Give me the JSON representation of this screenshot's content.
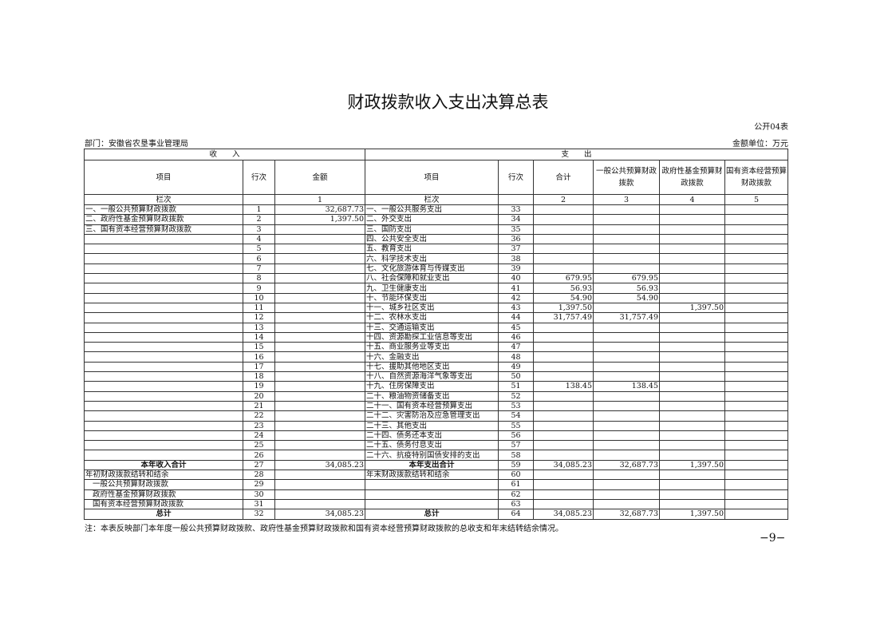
{
  "title": "财政拨款收入支出决算总表",
  "form_code": "公开04表",
  "department": "部门：安徽省农垦事业管理局",
  "unit": "金额单位：万元",
  "header": {
    "income": "收　　入",
    "expense": "支　　出",
    "item": "项目",
    "row_no": "行次",
    "amount": "金额",
    "item2": "项目",
    "row_no2": "行次",
    "total": "合计",
    "general": "一般公共预算财政拨款",
    "gov_fund": "政府性基金预算财政拨款",
    "state_capital": "国有资本经营预算财政拨款",
    "col_label": "栏次",
    "col_label2": "栏次",
    "c1": "1",
    "c2": "2",
    "c3": "3",
    "c4": "4",
    "c5": "5"
  },
  "rows": [
    [
      "一、一般公共预算财政拨款",
      "1",
      "32,687.73",
      "一、一般公共服务支出",
      "33",
      "",
      "",
      "",
      ""
    ],
    [
      "二、政府性基金预算财政拨款",
      "2",
      "1,397.50",
      "二、外交支出",
      "34",
      "",
      "",
      "",
      ""
    ],
    [
      "三、国有资本经营预算财政拨款",
      "3",
      "",
      "三、国防支出",
      "35",
      "",
      "",
      "",
      ""
    ],
    [
      "",
      "4",
      "",
      "四、公共安全支出",
      "36",
      "",
      "",
      "",
      ""
    ],
    [
      "",
      "5",
      "",
      "五、教育支出",
      "37",
      "",
      "",
      "",
      ""
    ],
    [
      "",
      "6",
      "",
      "六、科学技术支出",
      "38",
      "",
      "",
      "",
      ""
    ],
    [
      "",
      "7",
      "",
      "七、文化旅游体育与传媒支出",
      "39",
      "",
      "",
      "",
      ""
    ],
    [
      "",
      "8",
      "",
      "八、社会保障和就业支出",
      "40",
      "679.95",
      "679.95",
      "",
      ""
    ],
    [
      "",
      "9",
      "",
      "九、卫生健康支出",
      "41",
      "56.93",
      "56.93",
      "",
      ""
    ],
    [
      "",
      "10",
      "",
      "十、节能环保支出",
      "42",
      "54.90",
      "54.90",
      "",
      ""
    ],
    [
      "",
      "11",
      "",
      "十一、城乡社区支出",
      "43",
      "1,397.50",
      "",
      "1,397.50",
      ""
    ],
    [
      "",
      "12",
      "",
      "十二、农林水支出",
      "44",
      "31,757.49",
      "31,757.49",
      "",
      ""
    ],
    [
      "",
      "13",
      "",
      "十三、交通运输支出",
      "45",
      "",
      "",
      "",
      ""
    ],
    [
      "",
      "14",
      "",
      "十四、资源勘探工业信息等支出",
      "46",
      "",
      "",
      "",
      ""
    ],
    [
      "",
      "15",
      "",
      "十五、商业服务业等支出",
      "47",
      "",
      "",
      "",
      ""
    ],
    [
      "",
      "16",
      "",
      "十六、金融支出",
      "48",
      "",
      "",
      "",
      ""
    ],
    [
      "",
      "17",
      "",
      "十七、援助其他地区支出",
      "49",
      "",
      "",
      "",
      ""
    ],
    [
      "",
      "18",
      "",
      "十八、自然资源海洋气象等支出",
      "50",
      "",
      "",
      "",
      ""
    ],
    [
      "",
      "19",
      "",
      "十九、住房保障支出",
      "51",
      "138.45",
      "138.45",
      "",
      ""
    ],
    [
      "",
      "20",
      "",
      "二十、粮油物资储备支出",
      "52",
      "",
      "",
      "",
      ""
    ],
    [
      "",
      "21",
      "",
      "二十一、国有资本经营预算支出",
      "53",
      "",
      "",
      "",
      ""
    ],
    [
      "",
      "22",
      "",
      "二十二、灾害防治及应急管理支出",
      "54",
      "",
      "",
      "",
      ""
    ],
    [
      "",
      "23",
      "",
      "二十三、其他支出",
      "55",
      "",
      "",
      "",
      ""
    ],
    [
      "",
      "24",
      "",
      "二十四、债务还本支出",
      "56",
      "",
      "",
      "",
      ""
    ],
    [
      "",
      "25",
      "",
      "二十五、债务付息支出",
      "57",
      "",
      "",
      "",
      ""
    ],
    [
      "",
      "26",
      "",
      "二十六、抗疫特别国债安排的支出",
      "58",
      "",
      "",
      "",
      ""
    ],
    [
      "本年收入合计",
      "27",
      "34,085.23",
      "本年支出合计",
      "59",
      "34,085.23",
      "32,687.73",
      "1,397.50",
      ""
    ],
    [
      "年初财政拨款结转和结余",
      "28",
      "",
      "年末财政拨款结转和结余",
      "60",
      "",
      "",
      "",
      ""
    ],
    [
      "一般公共预算财政拨款",
      "29",
      "",
      "",
      "61",
      "",
      "",
      "",
      ""
    ],
    [
      "政府性基金预算财政拨款",
      "30",
      "",
      "",
      "62",
      "",
      "",
      "",
      ""
    ],
    [
      "国有资本经营预算财政拨款",
      "31",
      "",
      "",
      "63",
      "",
      "",
      "",
      ""
    ],
    [
      "总计",
      "32",
      "34,085.23",
      "总计",
      "64",
      "34,085.23",
      "32,687.73",
      "1,397.50",
      ""
    ]
  ],
  "note": "注：本表反映部门本年度一般公共预算财政拨款、政府性基金预算财政拨款和国有资本经营预算财政拨款的总收支和年末结转结余情况。",
  "page_number": "−9−"
}
